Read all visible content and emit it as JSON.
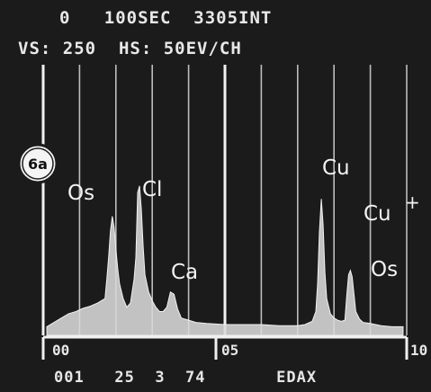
{
  "header": {
    "line1": "0   100SEC  3305INT",
    "line2": "VS: 250  HS: 50EV/CH"
  },
  "badge": "6a",
  "footer": "001   25  3  74       EDAX",
  "chart_data": {
    "type": "line",
    "title": "",
    "xlabel": "",
    "ylabel": "",
    "x_axis_labels": [
      "00",
      "05",
      "10"
    ],
    "xlim": [
      0,
      10
    ],
    "ylim": [
      0,
      250
    ],
    "grid": true,
    "peak_labels": [
      "Os",
      "Cl",
      "Ca",
      "Cu",
      "Cu",
      "+",
      "Os"
    ],
    "series": [
      {
        "x": [
          0.1,
          0.3,
          0.5,
          0.7,
          0.9,
          1.1,
          1.3,
          1.5,
          1.7,
          1.75,
          1.8,
          1.85,
          1.9,
          1.95,
          2.0,
          2.05,
          2.1,
          2.2,
          2.3,
          2.4,
          2.5,
          2.55,
          2.6,
          2.65,
          2.7,
          2.75,
          2.8,
          2.9,
          3.0,
          3.1,
          3.2,
          3.3,
          3.4,
          3.5,
          3.6,
          3.7,
          3.8,
          4.0,
          4.2,
          4.5,
          5.0,
          5.5,
          6.0,
          6.5,
          7.0,
          7.2,
          7.4,
          7.5,
          7.55,
          7.6,
          7.65,
          7.7,
          7.75,
          7.8,
          7.9,
          8.0,
          8.1,
          8.2,
          8.3,
          8.35,
          8.4,
          8.45,
          8.5,
          8.55,
          8.6,
          8.7,
          8.8,
          9.0,
          9.3,
          9.6,
          9.9
        ],
        "y": [
          8,
          12,
          16,
          20,
          22,
          25,
          27,
          30,
          34,
          52,
          72,
          96,
          110,
          100,
          80,
          62,
          48,
          34,
          26,
          30,
          52,
          72,
          132,
          138,
          116,
          82,
          56,
          40,
          32,
          26,
          22,
          22,
          26,
          40,
          38,
          24,
          16,
          14,
          12,
          11,
          10,
          10,
          10,
          9,
          9,
          10,
          13,
          22,
          48,
          96,
          126,
          102,
          58,
          34,
          20,
          16,
          14,
          13,
          14,
          36,
          56,
          60,
          54,
          38,
          22,
          15,
          12,
          11,
          9,
          8,
          8
        ]
      }
    ]
  }
}
